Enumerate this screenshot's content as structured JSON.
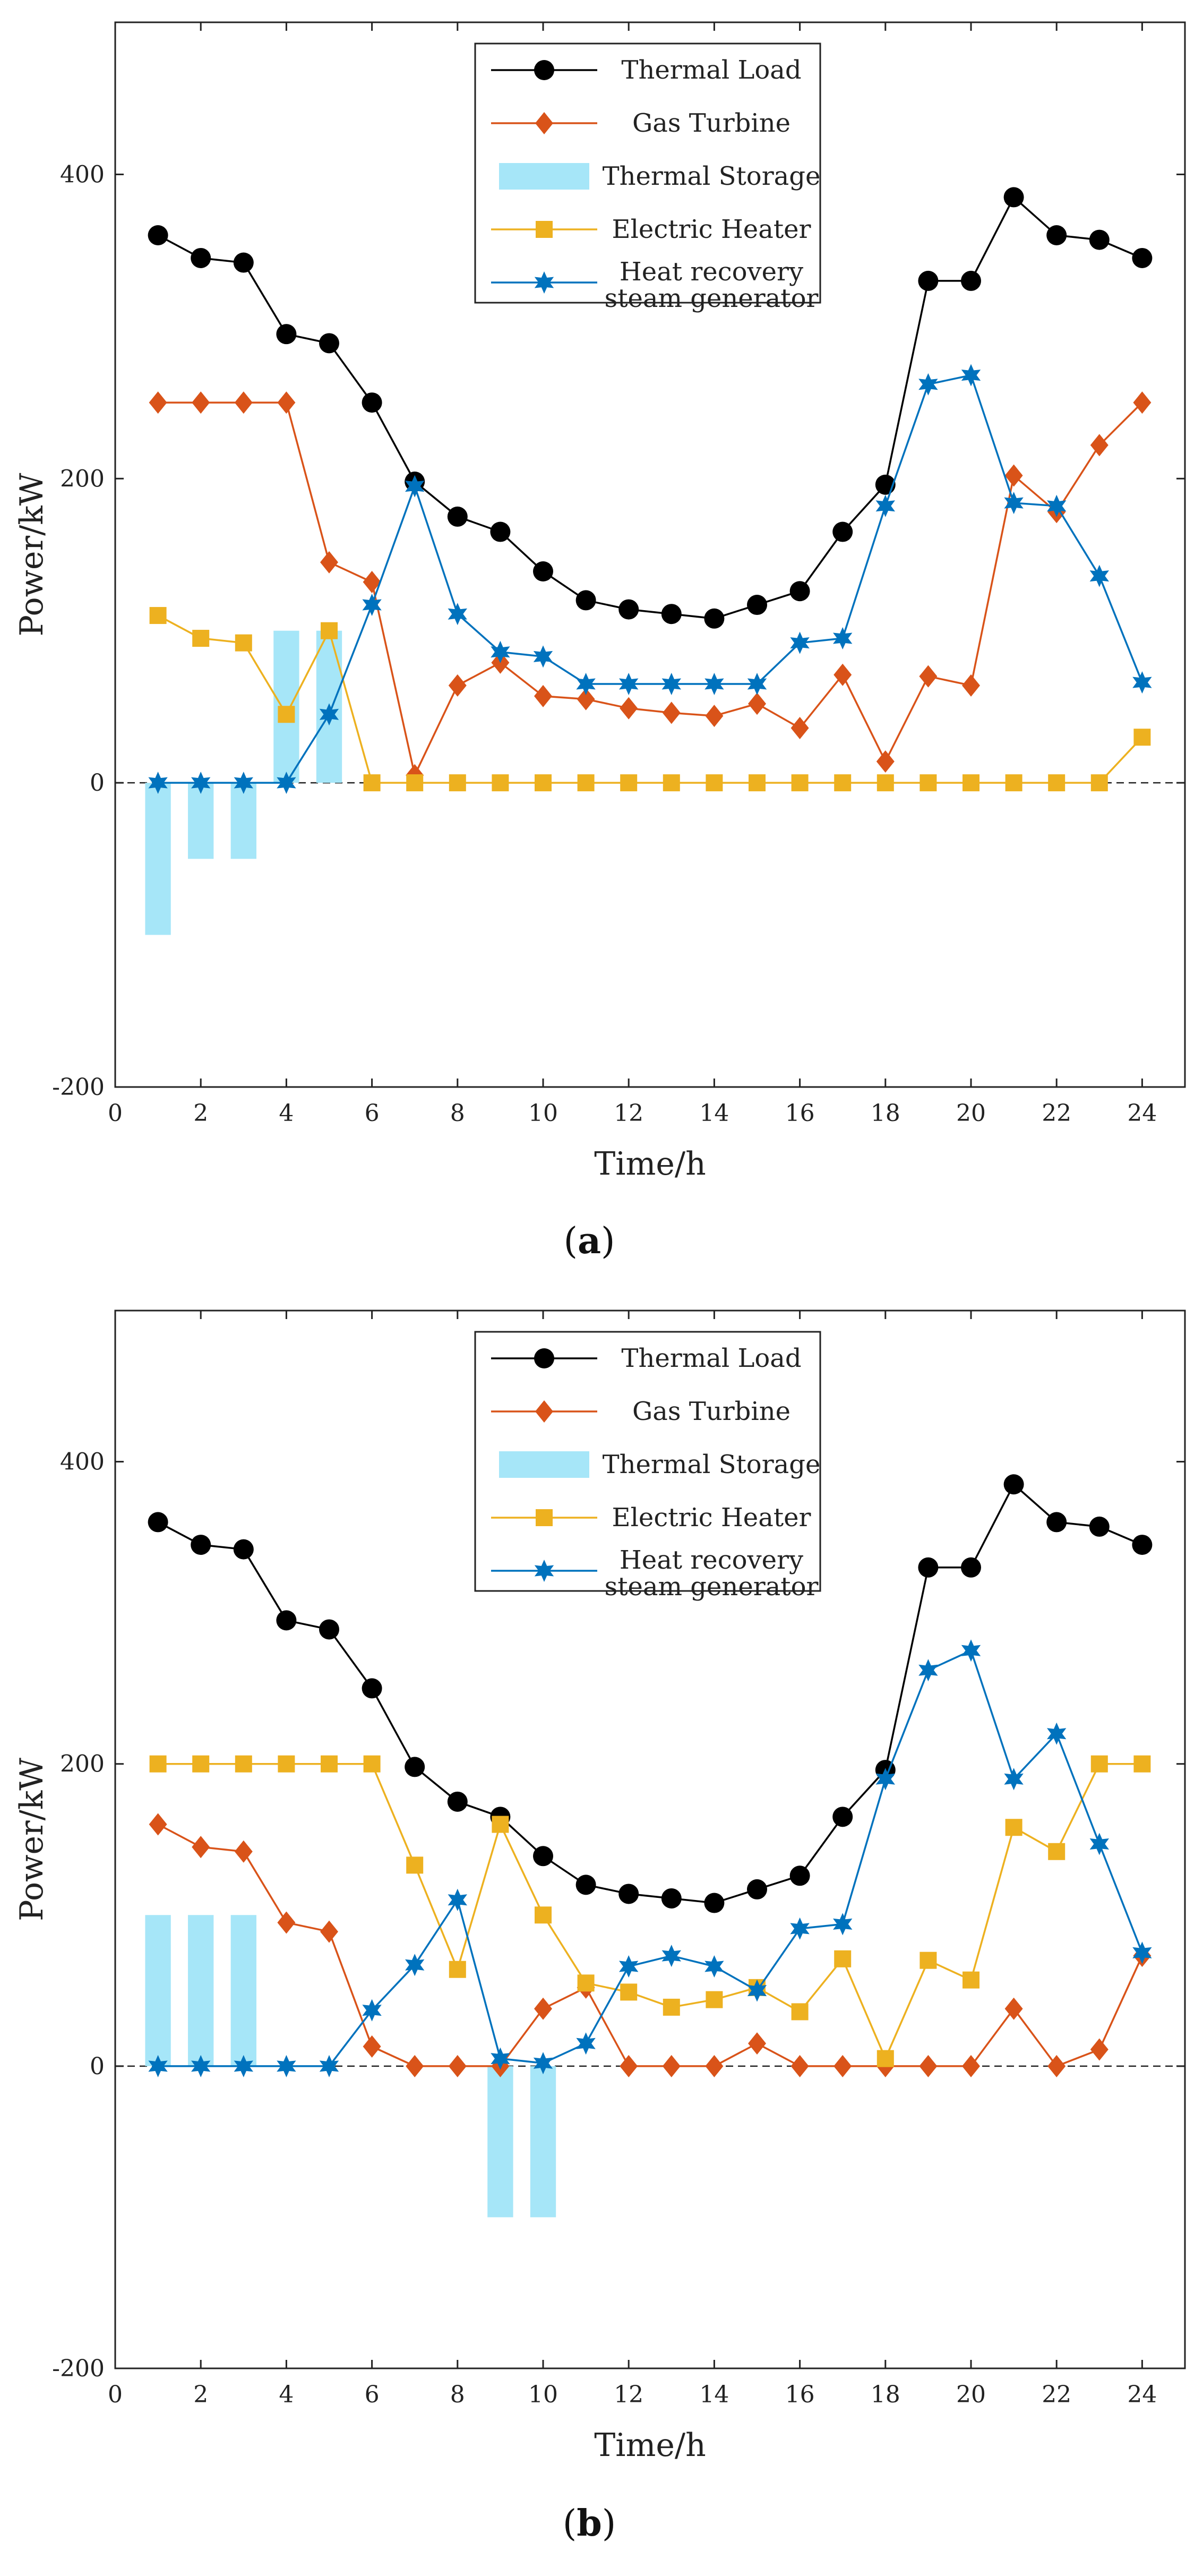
{
  "chart_data": [
    {
      "type": "line",
      "panel": "a",
      "caption_letter": "a",
      "xlabel": "Time/h",
      "ylabel": "Power/kW",
      "xlim": [
        0,
        25
      ],
      "ylim": [
        -200,
        500
      ],
      "xticks": [
        "0",
        "2",
        "4",
        "6",
        "8",
        "10",
        "12",
        "14",
        "16",
        "18",
        "20",
        "22",
        "24"
      ],
      "yticks": [
        "-200",
        "0",
        "200",
        "400"
      ],
      "x": [
        1,
        2,
        3,
        4,
        5,
        6,
        7,
        8,
        9,
        10,
        11,
        12,
        13,
        14,
        15,
        16,
        17,
        18,
        19,
        20,
        21,
        22,
        23,
        24
      ],
      "series": [
        {
          "name": "Thermal Load",
          "kind": "line",
          "color": "#000000",
          "marker": "circle",
          "values": [
            360,
            345,
            342,
            295,
            289,
            250,
            198,
            175,
            165,
            139,
            120,
            114,
            111,
            108,
            117,
            126,
            165,
            196,
            330,
            330,
            385,
            360,
            357,
            345
          ]
        },
        {
          "name": "Gas Turbine",
          "kind": "line",
          "color": "#d95319",
          "marker": "diamond",
          "values": [
            250,
            250,
            250,
            250,
            145,
            132,
            5,
            64,
            79,
            57,
            55,
            49,
            46,
            44,
            52,
            36,
            71,
            14,
            70,
            64,
            202,
            178,
            222,
            250
          ]
        },
        {
          "name": "Thermal Storage",
          "kind": "bar",
          "color": "#a6e6f8",
          "marker": "bar",
          "values": [
            -100,
            -50,
            -50,
            100,
            100,
            0,
            0,
            0,
            0,
            0,
            0,
            0,
            0,
            0,
            0,
            0,
            0,
            0,
            0,
            0,
            0,
            0,
            0,
            0
          ]
        },
        {
          "name": "Electric Heater",
          "kind": "line",
          "color": "#edb120",
          "marker": "square",
          "values": [
            110,
            95,
            92,
            45,
            100,
            0,
            0,
            0,
            0,
            0,
            0,
            0,
            0,
            0,
            0,
            0,
            0,
            0,
            0,
            0,
            0,
            0,
            0,
            30
          ]
        },
        {
          "name": "Heat recovery steam generator",
          "label_lines": [
            "Heat recovery",
            "steam generator"
          ],
          "kind": "line",
          "color": "#0072bd",
          "marker": "star",
          "values": [
            0,
            0,
            0,
            0,
            45,
            117,
            195,
            111,
            86,
            83,
            65,
            65,
            65,
            65,
            65,
            92,
            95,
            182,
            262,
            268,
            184,
            182,
            136,
            66
          ]
        }
      ]
    },
    {
      "type": "line",
      "panel": "b",
      "caption_letter": "b",
      "xlabel": "Time/h",
      "ylabel": "Power/kW",
      "xlim": [
        0,
        25
      ],
      "ylim": [
        -200,
        500
      ],
      "xticks": [
        "0",
        "2",
        "4",
        "6",
        "8",
        "10",
        "12",
        "14",
        "16",
        "18",
        "20",
        "22",
        "24"
      ],
      "yticks": [
        "-200",
        "0",
        "200",
        "400"
      ],
      "x": [
        1,
        2,
        3,
        4,
        5,
        6,
        7,
        8,
        9,
        10,
        11,
        12,
        13,
        14,
        15,
        16,
        17,
        18,
        19,
        20,
        21,
        22,
        23,
        24
      ],
      "series": [
        {
          "name": "Thermal Load",
          "kind": "line",
          "color": "#000000",
          "marker": "circle",
          "values": [
            360,
            345,
            342,
            295,
            289,
            250,
            198,
            175,
            165,
            139,
            120,
            114,
            111,
            108,
            117,
            126,
            165,
            196,
            330,
            330,
            385,
            360,
            357,
            345
          ]
        },
        {
          "name": "Gas Turbine",
          "kind": "line",
          "color": "#d95319",
          "marker": "diamond",
          "values": [
            160,
            145,
            142,
            95,
            89,
            13,
            0,
            0,
            0,
            38,
            52,
            0,
            0,
            0,
            15,
            0,
            0,
            0,
            0,
            0,
            38,
            0,
            11,
            73
          ]
        },
        {
          "name": "Thermal Storage",
          "kind": "bar",
          "color": "#a6e6f8",
          "marker": "bar",
          "values": [
            100,
            100,
            100,
            0,
            0,
            0,
            0,
            0,
            -100,
            -100,
            0,
            0,
            0,
            0,
            0,
            0,
            0,
            0,
            0,
            0,
            0,
            0,
            0,
            0
          ]
        },
        {
          "name": "Electric Heater",
          "kind": "line",
          "color": "#edb120",
          "marker": "square",
          "values": [
            200,
            200,
            200,
            200,
            200,
            200,
            133,
            64,
            160,
            100,
            55,
            49,
            39,
            44,
            52,
            36,
            71,
            5,
            70,
            57,
            158,
            142,
            200,
            200
          ]
        },
        {
          "name": "Heat recovery steam generator",
          "label_lines": [
            "Heat recovery",
            "steam generator"
          ],
          "kind": "line",
          "color": "#0072bd",
          "marker": "star",
          "values": [
            0,
            0,
            0,
            0,
            0,
            37,
            67,
            110,
            5,
            2,
            15,
            66,
            73,
            66,
            50,
            91,
            94,
            190,
            262,
            275,
            190,
            220,
            147,
            75
          ]
        }
      ]
    }
  ]
}
